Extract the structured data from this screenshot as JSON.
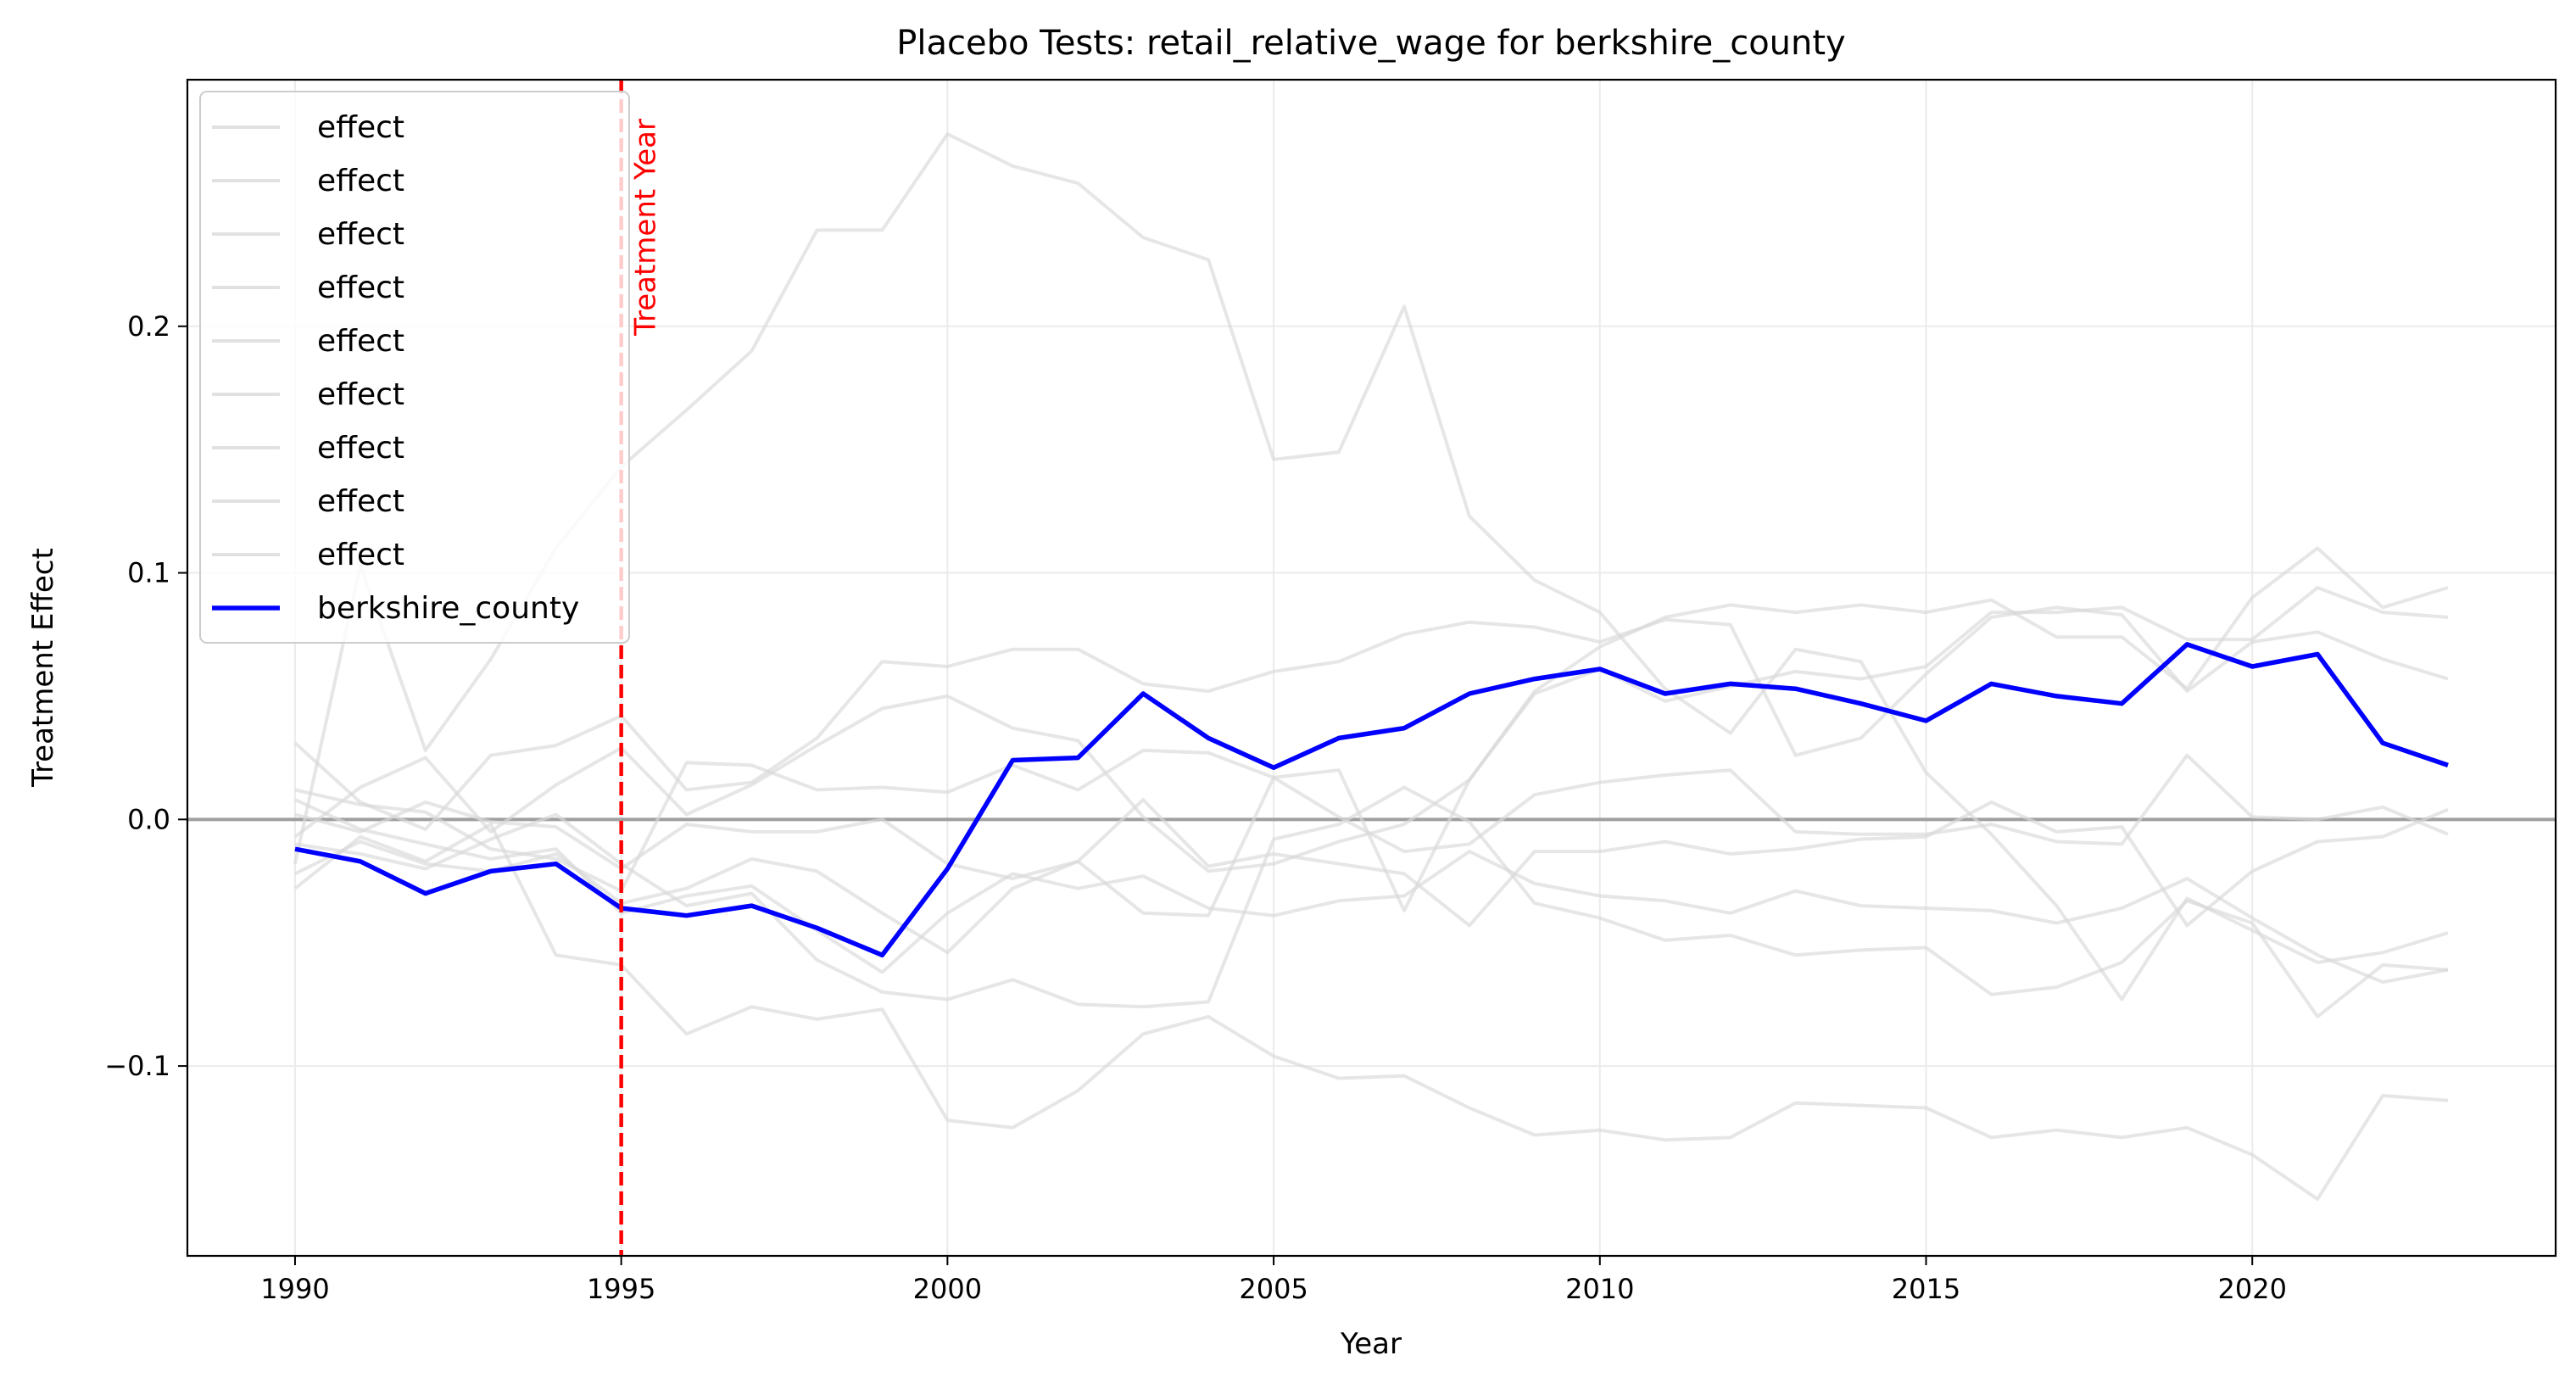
{
  "chart_data": {
    "type": "line",
    "title": "Placebo Tests: retail_relative_wage for berkshire_county",
    "xlabel": "Year",
    "ylabel": "Treatment Effect",
    "xlim": [
      1988.35,
      2024.65
    ],
    "ylim": [
      -0.177,
      0.3
    ],
    "x_ticks": [
      1990,
      1995,
      2000,
      2005,
      2010,
      2015,
      2020
    ],
    "y_ticks": [
      -0.1,
      0.0,
      0.1,
      0.2
    ],
    "y_tick_labels": [
      "−0.1",
      "0.0",
      "0.1",
      "0.2"
    ],
    "grid": true,
    "legend_position": "top-left",
    "zero_line": {
      "y": 0,
      "color": "#a0a0a0"
    },
    "treatment_line": {
      "x": 1995,
      "label": "Treatment Year",
      "color": "#ff0000"
    },
    "colors": {
      "placebo": "#d9d9d9",
      "treated": "#0000ff"
    },
    "x": [
      1990,
      1991,
      1992,
      1993,
      1994,
      1995,
      1996,
      1997,
      1998,
      1999,
      2000,
      2001,
      2002,
      2003,
      2004,
      2005,
      2006,
      2007,
      2008,
      2009,
      2010,
      2011,
      2012,
      2013,
      2014,
      2015,
      2016,
      2017,
      2018,
      2019,
      2020,
      2021,
      2022,
      2023
    ],
    "series": [
      {
        "name": "effect",
        "role": "placebo",
        "values": [
          -0.018,
          0.103,
          0.028,
          0.065,
          0.11,
          0.143,
          0.166,
          0.19,
          0.239,
          0.239,
          0.278,
          0.265,
          0.258,
          0.236,
          0.227,
          0.146,
          0.149,
          0.208,
          0.123,
          0.097,
          0.084,
          0.053,
          0.035,
          0.069,
          0.064,
          0.019,
          -0.006,
          -0.035,
          -0.073,
          -0.032,
          -0.045,
          -0.058,
          -0.054,
          -0.046
        ]
      },
      {
        "name": "effect",
        "role": "placebo",
        "values": [
          0.012,
          0.006,
          0.003,
          -0.012,
          -0.016,
          -0.029,
          0.023,
          0.022,
          0.012,
          0.013,
          0.011,
          0.022,
          0.012,
          0.028,
          0.027,
          0.017,
          0.02,
          -0.037,
          0.016,
          0.052,
          0.07,
          0.082,
          0.087,
          0.084,
          0.087,
          0.084,
          0.089,
          0.074,
          0.074,
          0.053,
          0.09,
          0.11,
          0.086,
          0.094
        ]
      },
      {
        "name": "effect",
        "role": "placebo",
        "values": [
          0.031,
          0.007,
          -0.004,
          0.026,
          0.03,
          0.042,
          0.012,
          0.015,
          0.033,
          0.064,
          0.062,
          0.069,
          0.069,
          0.055,
          0.052,
          0.06,
          0.064,
          0.075,
          0.08,
          0.078,
          0.072,
          0.081,
          0.079,
          0.026,
          0.033,
          0.059,
          0.082,
          0.086,
          0.083,
          0.052,
          0.072,
          0.076,
          0.065,
          0.057
        ]
      },
      {
        "name": "effect",
        "role": "placebo",
        "values": [
          -0.007,
          0.013,
          0.025,
          -0.005,
          0.014,
          0.029,
          0.002,
          0.014,
          0.03,
          0.045,
          0.05,
          0.037,
          0.032,
          0.001,
          -0.021,
          -0.018,
          -0.009,
          -0.002,
          0.016,
          0.051,
          0.061,
          0.048,
          0.054,
          0.06,
          0.057,
          0.062,
          0.084,
          0.084,
          0.086,
          0.073,
          0.073,
          0.094,
          0.084,
          0.082
        ]
      },
      {
        "name": "effect",
        "role": "placebo",
        "values": [
          -0.028,
          -0.007,
          -0.017,
          -0.002,
          -0.055,
          -0.059,
          -0.087,
          -0.076,
          -0.081,
          -0.077,
          -0.122,
          -0.125,
          -0.11,
          -0.087,
          -0.08,
          -0.096,
          -0.105,
          -0.104,
          -0.117,
          -0.128,
          -0.126,
          -0.13,
          -0.129,
          -0.115,
          -0.116,
          -0.117,
          -0.129,
          -0.126,
          -0.129,
          -0.125,
          -0.136,
          -0.154,
          -0.112,
          -0.114
        ]
      },
      {
        "name": "effect",
        "role": "placebo",
        "values": [
          -0.01,
          -0.014,
          -0.02,
          -0.008,
          0.002,
          -0.018,
          -0.035,
          -0.03,
          -0.057,
          -0.07,
          -0.073,
          -0.065,
          -0.075,
          -0.076,
          -0.074,
          -0.008,
          -0.002,
          0.013,
          -0.001,
          -0.034,
          -0.04,
          -0.049,
          -0.047,
          -0.055,
          -0.053,
          -0.052,
          -0.071,
          -0.068,
          -0.058,
          -0.033,
          -0.042,
          -0.08,
          -0.059,
          -0.061
        ]
      },
      {
        "name": "effect",
        "role": "placebo",
        "values": [
          0.008,
          -0.004,
          -0.01,
          -0.016,
          -0.012,
          -0.038,
          -0.031,
          -0.027,
          -0.045,
          -0.062,
          -0.038,
          -0.022,
          -0.028,
          -0.023,
          -0.036,
          -0.039,
          -0.033,
          -0.031,
          -0.013,
          -0.026,
          -0.031,
          -0.033,
          -0.038,
          -0.029,
          -0.035,
          -0.036,
          -0.037,
          -0.042,
          -0.036,
          -0.024,
          -0.04,
          -0.055,
          -0.066,
          -0.061
        ]
      },
      {
        "name": "effect",
        "role": "placebo",
        "values": [
          -0.022,
          -0.009,
          -0.018,
          -0.021,
          -0.014,
          -0.034,
          -0.028,
          -0.016,
          -0.021,
          -0.038,
          -0.054,
          -0.028,
          -0.017,
          -0.038,
          -0.039,
          0.017,
          0.001,
          -0.013,
          -0.01,
          0.01,
          0.015,
          0.018,
          0.02,
          -0.005,
          -0.006,
          -0.006,
          -0.002,
          -0.009,
          -0.01,
          0.026,
          0.001,
          0.0,
          0.005,
          -0.006
        ]
      },
      {
        "name": "effect",
        "role": "placebo",
        "values": [
          0.002,
          -0.005,
          0.007,
          -0.001,
          -0.003,
          -0.02,
          -0.002,
          -0.005,
          -0.005,
          0.0,
          -0.018,
          -0.024,
          -0.017,
          0.008,
          -0.019,
          -0.014,
          -0.018,
          -0.022,
          -0.043,
          -0.013,
          -0.013,
          -0.009,
          -0.014,
          -0.012,
          -0.008,
          -0.007,
          0.007,
          -0.005,
          -0.003,
          -0.043,
          -0.021,
          -0.009,
          -0.007,
          0.004
        ]
      },
      {
        "name": "berkshire_county",
        "role": "treated",
        "values": [
          -0.012,
          -0.017,
          -0.03,
          -0.021,
          -0.018,
          -0.036,
          -0.039,
          -0.035,
          -0.044,
          -0.055,
          -0.02,
          0.024,
          0.025,
          0.051,
          0.033,
          0.021,
          0.033,
          0.037,
          0.051,
          0.057,
          0.061,
          0.051,
          0.055,
          0.053,
          0.047,
          0.04,
          0.055,
          0.05,
          0.047,
          0.071,
          0.062,
          0.067,
          0.031,
          0.022
        ]
      }
    ]
  }
}
